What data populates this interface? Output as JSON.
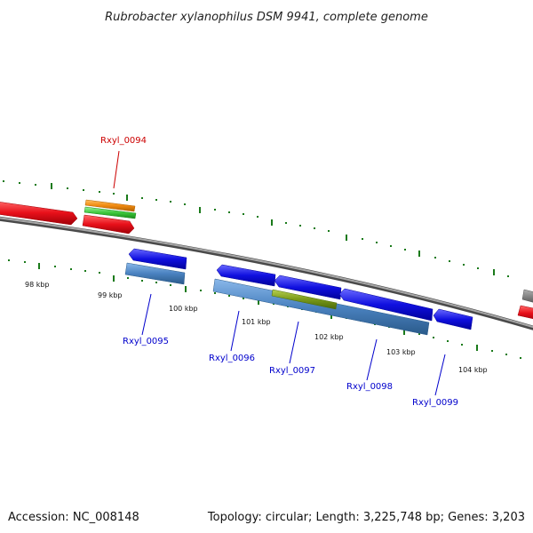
{
  "title": "Rubrobacter xylanophilus DSM 9941, complete genome",
  "footer": {
    "accession": "Accession: NC_008148",
    "stats": "Topology: circular; Length: 3,225,748 bp; Genes: 3,203"
  },
  "colors": {
    "backbone": "#7a7a7a",
    "tick": "#1a7a1a",
    "label_forward": "#cc0000",
    "label_reverse": "#0000cc",
    "gene_red": "#e8101a",
    "gene_orange": "#f08a10",
    "gene_green": "#3cc83c",
    "gene_blue": "#1010e0",
    "gene_steel": "#4a82c0",
    "gene_olive": "#7a9a1a",
    "gene_gray": "#808080"
  },
  "kbp_labels": [
    "98 kbp",
    "99 kbp",
    "100 kbp",
    "101 kbp",
    "102 kbp",
    "103 kbp",
    "104 kbp"
  ],
  "gene_labels": [
    {
      "id": "Rxyl_0094",
      "strand": "forward"
    },
    {
      "id": "Rxyl_0095",
      "strand": "reverse"
    },
    {
      "id": "Rxyl_0096",
      "strand": "reverse"
    },
    {
      "id": "Rxyl_0097",
      "strand": "reverse"
    },
    {
      "id": "Rxyl_0098",
      "strand": "reverse"
    },
    {
      "id": "Rxyl_0099",
      "strand": "reverse"
    }
  ]
}
